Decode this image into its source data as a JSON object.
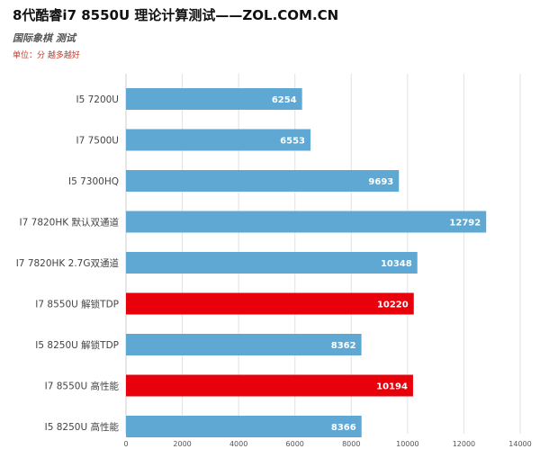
{
  "header": {
    "title": "8代酷睿i7 8550U 理论计算测试——ZOL.COM.CN",
    "subtitle": "国际象棋 测试",
    "unit": "单位：分 越多越好"
  },
  "colors": {
    "bar_default": "#5fa8d3",
    "bar_highlight": "#e8000b",
    "grid": "#e2e2e2",
    "axis_label": "#444444",
    "tick_label": "#555555",
    "value_label": "#ffffff"
  },
  "chart_data": {
    "type": "bar",
    "orientation": "horizontal",
    "title": "8代酷睿i7 8550U 理论计算测试——ZOL.COM.CN",
    "subtitle": "国际象棋 测试",
    "categories": [
      "I5 7200U",
      "I7 7500U",
      "I5 7300HQ",
      "I7 7820HK 默认双通道",
      "I7 7820HK 2.7G双通道",
      "I7 8550U 解锁TDP",
      "I5 8250U 解锁TDP",
      "I7 8550U 高性能",
      "I5 8250U 高性能"
    ],
    "values": [
      6254,
      6553,
      9693,
      12792,
      10348,
      10220,
      8362,
      10194,
      8366
    ],
    "highlighted": [
      false,
      false,
      false,
      false,
      false,
      true,
      false,
      true,
      false
    ],
    "xlim": [
      0,
      14000
    ],
    "xticks": [
      0,
      2000,
      4000,
      6000,
      8000,
      10000,
      12000,
      14000
    ],
    "grid": true,
    "legend": "none"
  }
}
